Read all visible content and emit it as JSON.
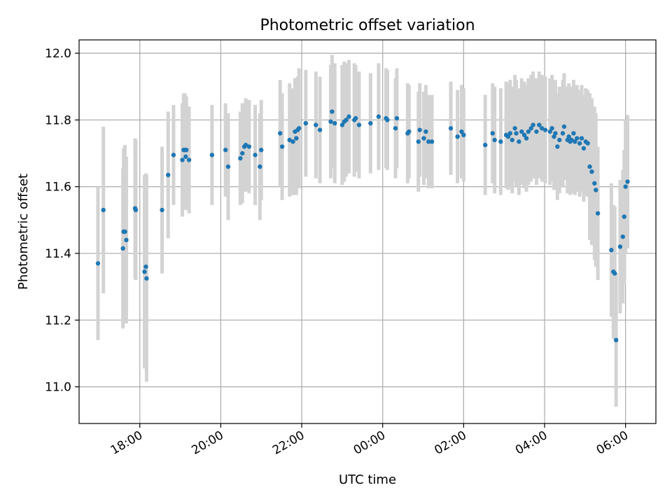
{
  "chart_data": {
    "type": "scatter",
    "title": "Photometric offset variation",
    "xlabel": "UTC time",
    "ylabel": "Photometric offset",
    "xlim": [
      "16:30",
      "30:45"
    ],
    "ylim": [
      10.89,
      12.04
    ],
    "grid": true,
    "x_ticks": [
      "18:00",
      "20:00",
      "22:00",
      "00:00",
      "02:00",
      "04:00",
      "06:00"
    ],
    "y_ticks": [
      "11.0",
      "11.2",
      "11.4",
      "11.6",
      "11.8",
      "12.0"
    ],
    "colors": {
      "point": "#1f77b4",
      "errorbar": "#d3d3d3",
      "grid": "#b0b0b0"
    },
    "series": [
      {
        "x": [
          "16:58",
          "17:06",
          "17:35",
          "17:36",
          "17:38",
          "17:40",
          "17:53",
          "17:54",
          "18:07",
          "18:09",
          "18:10",
          "18:33",
          "18:42",
          "18:50",
          "19:03",
          "19:05",
          "19:07",
          "19:08",
          "19:09",
          "19:13",
          "19:47",
          "20:07",
          "20:11",
          "20:29",
          "20:32",
          "20:35",
          "20:37",
          "20:42",
          "20:51",
          "20:58",
          "21:00",
          "21:28",
          "21:31",
          "21:42",
          "21:47",
          "21:50",
          "21:52",
          "21:54",
          "21:56",
          "22:06",
          "22:21",
          "22:27",
          "22:43",
          "22:45",
          "22:49",
          "23:00",
          "23:03",
          "23:06",
          "23:10",
          "23:18",
          "23:20",
          "23:25",
          "23:42",
          "23:54",
          "24:05",
          "24:07",
          "24:19",
          "24:21",
          "24:37",
          "24:39",
          "24:53",
          "24:55",
          "25:01",
          "25:04",
          "25:08",
          "25:13",
          "25:41",
          "25:51",
          "25:57",
          "26:00",
          "26:32",
          "26:43",
          "26:46",
          "26:55",
          "27:03",
          "27:06",
          "27:09",
          "27:12",
          "27:16",
          "27:18",
          "27:22",
          "27:26",
          "27:30",
          "27:33",
          "27:36",
          "27:40",
          "27:43",
          "27:48",
          "27:52",
          "27:56",
          "28:01",
          "28:08",
          "28:11",
          "28:14",
          "28:16",
          "28:19",
          "28:22",
          "28:27",
          "28:29",
          "28:34",
          "28:36",
          "28:38",
          "28:40",
          "28:43",
          "28:45",
          "28:48",
          "28:52",
          "28:55",
          "28:58",
          "29:01",
          "29:04",
          "29:07",
          "29:10",
          "29:14",
          "29:16",
          "29:19",
          "29:39",
          "29:42",
          "29:44",
          "29:46",
          "29:52",
          "29:56",
          "29:58",
          "30:00",
          "30:03"
        ],
        "y": [
          11.37,
          11.53,
          11.415,
          11.465,
          11.465,
          11.44,
          11.535,
          11.53,
          11.345,
          11.36,
          11.325,
          11.53,
          11.635,
          11.695,
          11.68,
          11.71,
          11.71,
          11.69,
          11.71,
          11.68,
          11.695,
          11.71,
          11.66,
          11.685,
          11.7,
          11.72,
          11.725,
          11.72,
          11.695,
          11.66,
          11.71,
          11.76,
          11.72,
          11.74,
          11.735,
          11.765,
          11.745,
          11.77,
          11.775,
          11.79,
          11.785,
          11.77,
          11.795,
          11.825,
          11.79,
          11.785,
          11.795,
          11.8,
          11.81,
          11.8,
          11.805,
          11.785,
          11.79,
          11.81,
          11.805,
          11.8,
          11.775,
          11.805,
          11.76,
          11.765,
          11.735,
          11.77,
          11.745,
          11.765,
          11.735,
          11.735,
          11.775,
          11.75,
          11.765,
          11.755,
          11.725,
          11.76,
          11.74,
          11.735,
          11.755,
          11.75,
          11.76,
          11.74,
          11.775,
          11.76,
          11.735,
          11.765,
          11.755,
          11.745,
          11.765,
          11.775,
          11.785,
          11.765,
          11.785,
          11.775,
          11.77,
          11.765,
          11.775,
          11.75,
          11.76,
          11.72,
          11.74,
          11.76,
          11.78,
          11.74,
          11.75,
          11.735,
          11.74,
          11.76,
          11.735,
          11.745,
          11.73,
          11.745,
          11.715,
          11.735,
          11.73,
          11.66,
          11.645,
          11.61,
          11.59,
          11.52,
          11.41,
          11.345,
          11.34,
          11.14,
          11.42,
          11.45,
          11.51,
          11.6,
          11.615
        ],
        "yerr": [
          0.23,
          0.25,
          0.24,
          0.25,
          0.26,
          0.25,
          0.21,
          0.21,
          0.29,
          0.28,
          0.31,
          0.19,
          0.19,
          0.15,
          0.17,
          0.17,
          0.17,
          0.16,
          0.16,
          0.16,
          0.15,
          0.14,
          0.16,
          0.14,
          0.15,
          0.13,
          0.14,
          0.14,
          0.15,
          0.16,
          0.15,
          0.16,
          0.16,
          0.17,
          0.16,
          0.16,
          0.17,
          0.16,
          0.18,
          0.16,
          0.16,
          0.16,
          0.17,
          0.17,
          0.18,
          0.18,
          0.18,
          0.17,
          0.17,
          0.17,
          0.16,
          0.16,
          0.15,
          0.16,
          0.15,
          0.15,
          0.15,
          0.15,
          0.15,
          0.14,
          0.15,
          0.14,
          0.14,
          0.14,
          0.14,
          0.14,
          0.14,
          0.14,
          0.14,
          0.14,
          0.15,
          0.15,
          0.16,
          0.16,
          0.16,
          0.16,
          0.16,
          0.16,
          0.16,
          0.16,
          0.16,
          0.16,
          0.16,
          0.16,
          0.16,
          0.16,
          0.16,
          0.16,
          0.16,
          0.16,
          0.16,
          0.16,
          0.16,
          0.16,
          0.16,
          0.16,
          0.16,
          0.16,
          0.16,
          0.16,
          0.16,
          0.16,
          0.16,
          0.16,
          0.16,
          0.16,
          0.16,
          0.16,
          0.16,
          0.16,
          0.16,
          0.22,
          0.22,
          0.23,
          0.23,
          0.2,
          0.2,
          0.2,
          0.2,
          0.2,
          0.2,
          0.2,
          0.2,
          0.2,
          0.2
        ]
      }
    ]
  }
}
